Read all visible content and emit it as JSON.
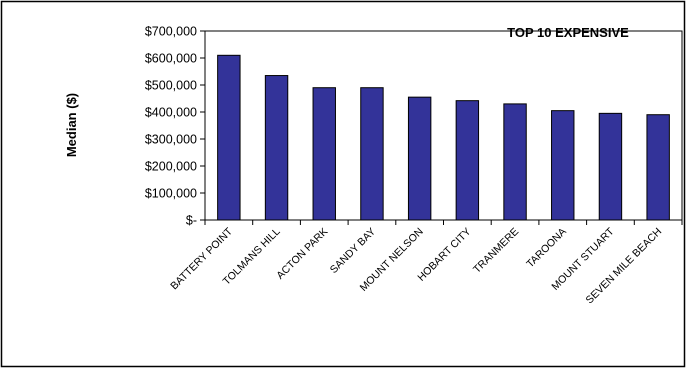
{
  "chart_data": {
    "type": "bar",
    "title": "TOP 10 EXPENSIVE",
    "ylabel": "Median ($)",
    "xlabel": "",
    "categories": [
      "BATTERY POINT",
      "TOLMANS HILL",
      "ACTON PARK",
      "SANDY BAY",
      "MOUNT NELSON",
      "HOBART CITY",
      "TRANMERE",
      "TAROONA",
      "MOUNT STUART",
      "SEVEN MILE BEACH"
    ],
    "values": [
      610000,
      535000,
      490000,
      490000,
      455000,
      442000,
      430000,
      405000,
      395000,
      390000
    ],
    "ylim": [
      0,
      700000
    ],
    "y_ticks": [
      0,
      100000,
      200000,
      300000,
      400000,
      500000,
      600000,
      700000
    ],
    "y_tick_labels": [
      "$-",
      "$100,000",
      "$200,000",
      "$300,000",
      "$400,000",
      "$500,000",
      "$600,000",
      "$700,000"
    ],
    "grid": false,
    "legend": "none",
    "colors": {
      "bar": "#333399",
      "bar_edge": "#000000"
    }
  }
}
